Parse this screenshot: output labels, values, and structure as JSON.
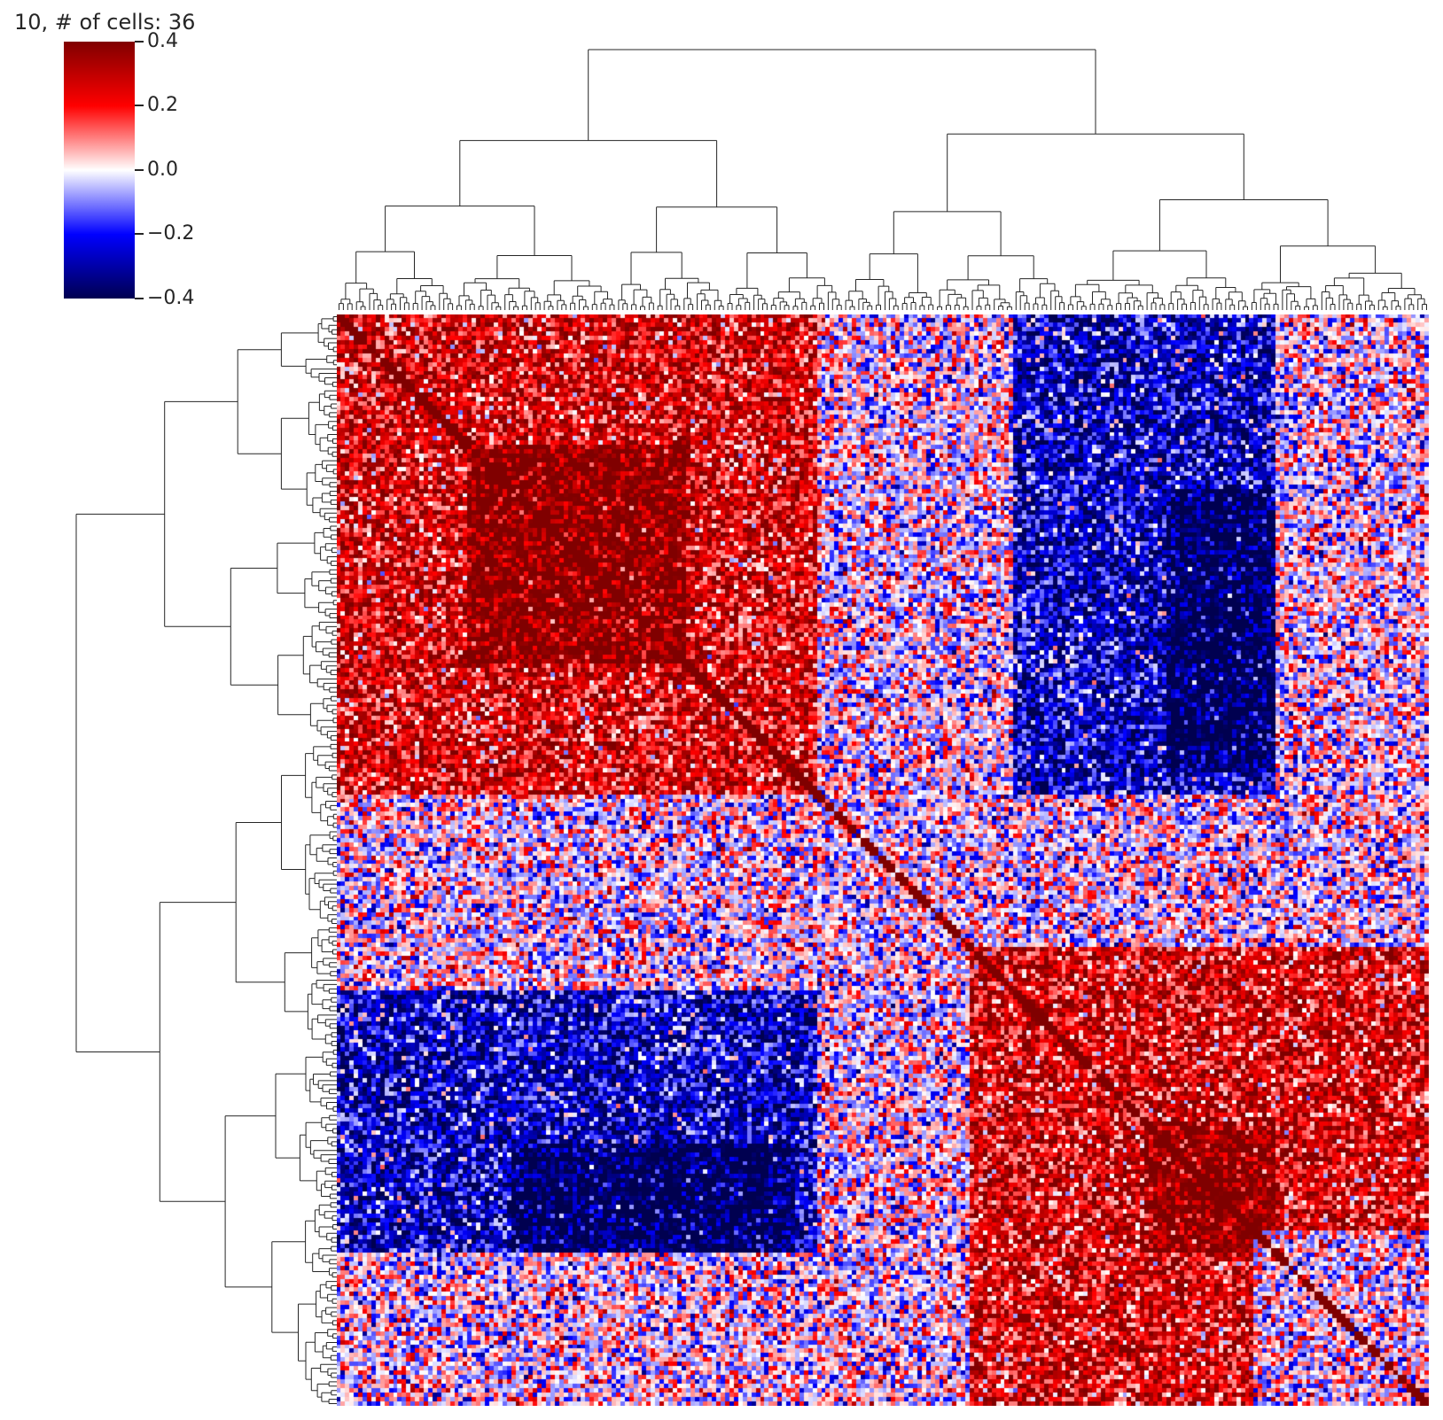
{
  "chart_data": {
    "type": "heatmap",
    "title": "10, # of cells: 36",
    "colormap": "seismic",
    "colors": {
      "max": "#800000",
      "high": "#ff0000",
      "zero": "#ffffff",
      "low": "#0000ff",
      "min": "#000050"
    },
    "vmin": -0.4,
    "vmax": 0.4,
    "colorbar_ticks": [
      "0.4",
      "0.2",
      "0.0",
      "−0.2",
      "−0.4"
    ],
    "colorbar_tick_values": [
      0.4,
      0.2,
      0.0,
      -0.2,
      -0.4
    ],
    "matrix_size": 250,
    "diagonal_value": 0.4,
    "dendrograms": [
      "top",
      "left"
    ],
    "blocks": [
      {
        "rows": [
          0,
          110
        ],
        "cols": [
          0,
          110
        ],
        "mean": 0.25
      },
      {
        "rows": [
          30,
          80
        ],
        "cols": [
          30,
          80
        ],
        "mean": 0.4
      },
      {
        "rows": [
          145,
          210
        ],
        "cols": [
          145,
          250
        ],
        "mean": 0.25
      },
      {
        "rows": [
          185,
          210
        ],
        "cols": [
          185,
          215
        ],
        "mean": 0.4
      },
      {
        "rows": [
          0,
          110
        ],
        "cols": [
          155,
          215
        ],
        "mean": -0.25
      },
      {
        "rows": [
          155,
          215
        ],
        "cols": [
          0,
          110
        ],
        "mean": -0.25
      },
      {
        "rows": [
          190,
          215
        ],
        "cols": [
          40,
          105
        ],
        "mean": -0.4
      },
      {
        "rows": [
          40,
          100
        ],
        "cols": [
          190,
          215
        ],
        "mean": -0.4
      }
    ]
  }
}
